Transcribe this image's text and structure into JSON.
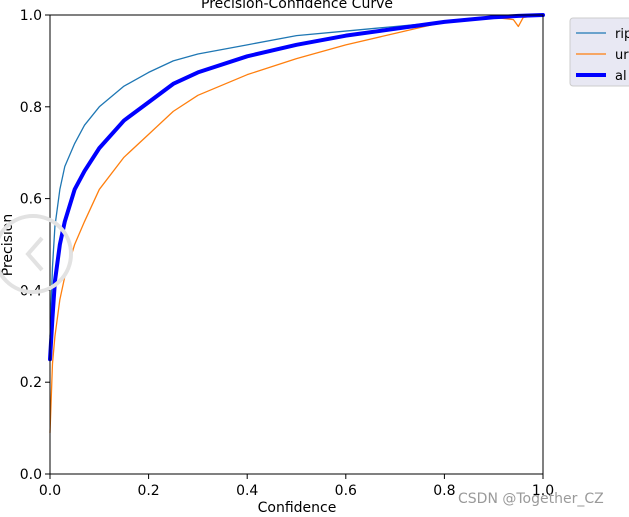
{
  "chart_data": {
    "type": "line",
    "title": "Precision-Confidence Curve",
    "xlabel": "Confidence",
    "ylabel": "Precision",
    "xlim": [
      0,
      1
    ],
    "ylim": [
      0,
      1
    ],
    "xticks": [
      "0.0",
      "0.2",
      "0.4",
      "0.6",
      "0.8",
      "1.0"
    ],
    "yticks": [
      "0.0",
      "0.2",
      "0.4",
      "0.6",
      "0.8",
      "1.0"
    ],
    "grid": false,
    "legend_placement": "outside-top-right",
    "series": [
      {
        "name": "rip",
        "color": "#1f77b4",
        "emphasis": false,
        "x": [
          0.0,
          0.005,
          0.01,
          0.02,
          0.03,
          0.05,
          0.07,
          0.1,
          0.15,
          0.2,
          0.25,
          0.3,
          0.4,
          0.5,
          0.6,
          0.7,
          0.8,
          0.9,
          0.95,
          1.0
        ],
        "y": [
          0.3,
          0.45,
          0.54,
          0.62,
          0.67,
          0.72,
          0.76,
          0.8,
          0.845,
          0.875,
          0.9,
          0.915,
          0.935,
          0.955,
          0.965,
          0.975,
          0.985,
          0.993,
          0.997,
          1.0
        ]
      },
      {
        "name": "ur",
        "color": "#ff7f0e",
        "emphasis": false,
        "x": [
          0.0,
          0.005,
          0.01,
          0.02,
          0.03,
          0.05,
          0.07,
          0.1,
          0.15,
          0.2,
          0.25,
          0.3,
          0.4,
          0.5,
          0.6,
          0.7,
          0.8,
          0.9,
          0.94,
          0.95,
          0.96,
          1.0
        ],
        "y": [
          0.09,
          0.24,
          0.3,
          0.38,
          0.43,
          0.5,
          0.55,
          0.62,
          0.69,
          0.74,
          0.79,
          0.825,
          0.87,
          0.905,
          0.935,
          0.96,
          0.985,
          0.995,
          0.99,
          0.975,
          0.995,
          1.0
        ]
      },
      {
        "name": "al",
        "color": "#0000ff",
        "emphasis": true,
        "x": [
          0.0,
          0.005,
          0.01,
          0.02,
          0.03,
          0.05,
          0.07,
          0.1,
          0.15,
          0.2,
          0.25,
          0.3,
          0.4,
          0.5,
          0.6,
          0.7,
          0.8,
          0.9,
          0.95,
          1.0
        ],
        "y": [
          0.25,
          0.34,
          0.42,
          0.5,
          0.55,
          0.62,
          0.66,
          0.71,
          0.77,
          0.81,
          0.85,
          0.875,
          0.91,
          0.935,
          0.955,
          0.97,
          0.985,
          0.995,
          0.998,
          1.0
        ]
      }
    ]
  },
  "watermark": "CSDN @Together_CZ",
  "colors": {
    "legend_bg": "#e8e8f3",
    "legend_border": "#cccccc",
    "watermark": "#9a9a9a",
    "overlay_circle": "#e0e0e0"
  }
}
